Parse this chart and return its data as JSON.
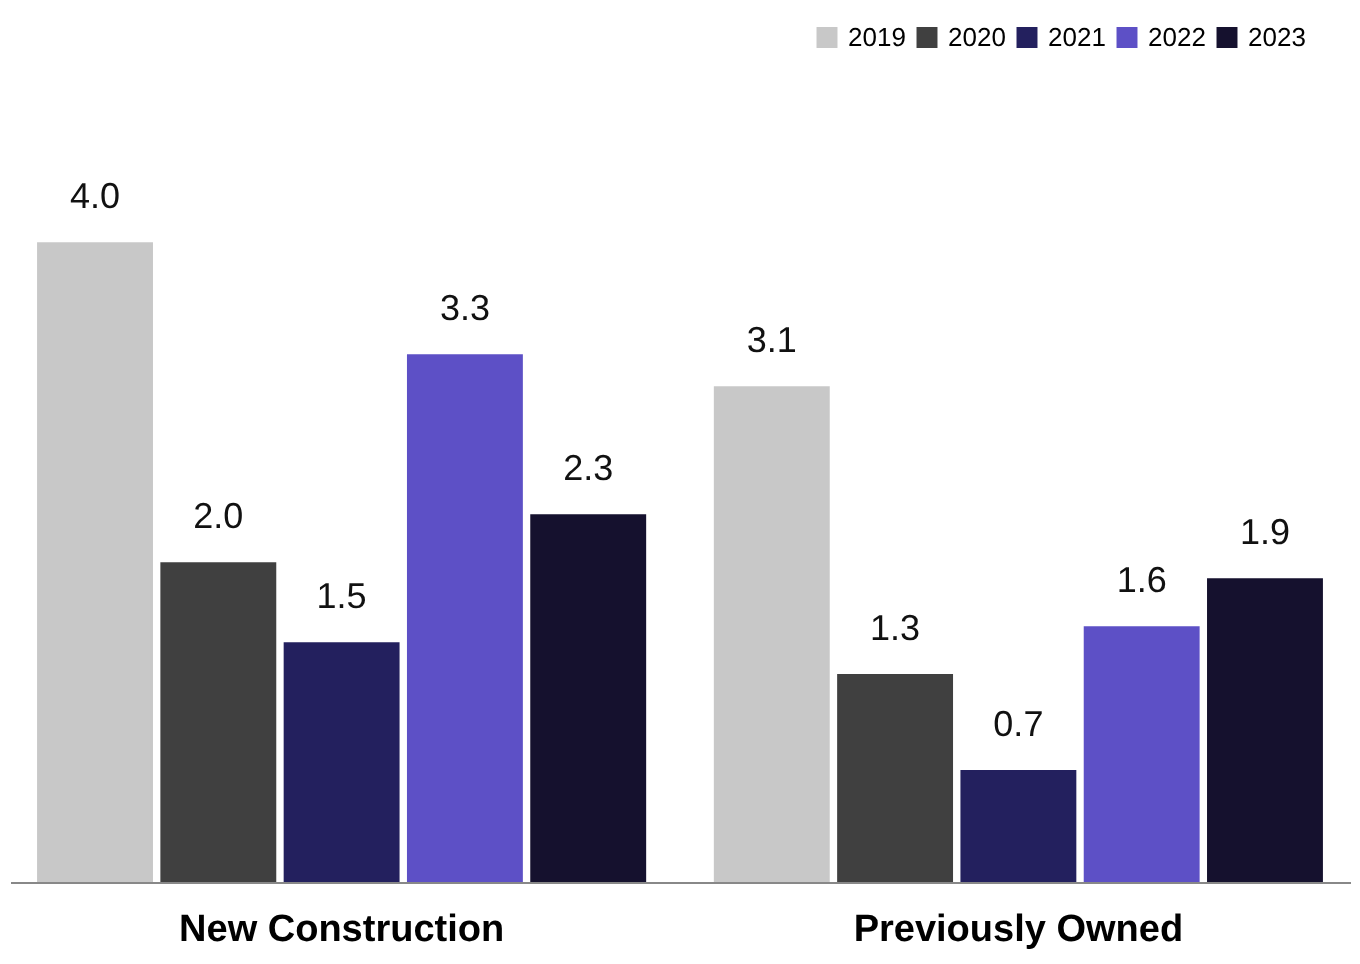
{
  "chart_data": {
    "type": "bar",
    "categories": [
      "New Construction",
      "Previously Owned"
    ],
    "series": [
      {
        "name": "2019",
        "color": "#c8c8c8",
        "values": [
          4.0,
          3.1
        ],
        "value_labels": [
          "4.0",
          "3.1"
        ]
      },
      {
        "name": "2020",
        "color": "#404040",
        "values": [
          2.0,
          1.3
        ],
        "value_labels": [
          "2.0",
          "1.3"
        ]
      },
      {
        "name": "2021",
        "color": "#23205e",
        "values": [
          1.5,
          0.7
        ],
        "value_labels": [
          "1.5",
          "0.7"
        ]
      },
      {
        "name": "2022",
        "color": "#5d50c6",
        "values": [
          3.3,
          1.6
        ],
        "value_labels": [
          "3.3",
          "1.6"
        ]
      },
      {
        "name": "2023",
        "color": "#15112e",
        "values": [
          2.3,
          1.9
        ],
        "value_labels": [
          "2.3",
          "1.9"
        ]
      }
    ],
    "legend": "top right"
  }
}
